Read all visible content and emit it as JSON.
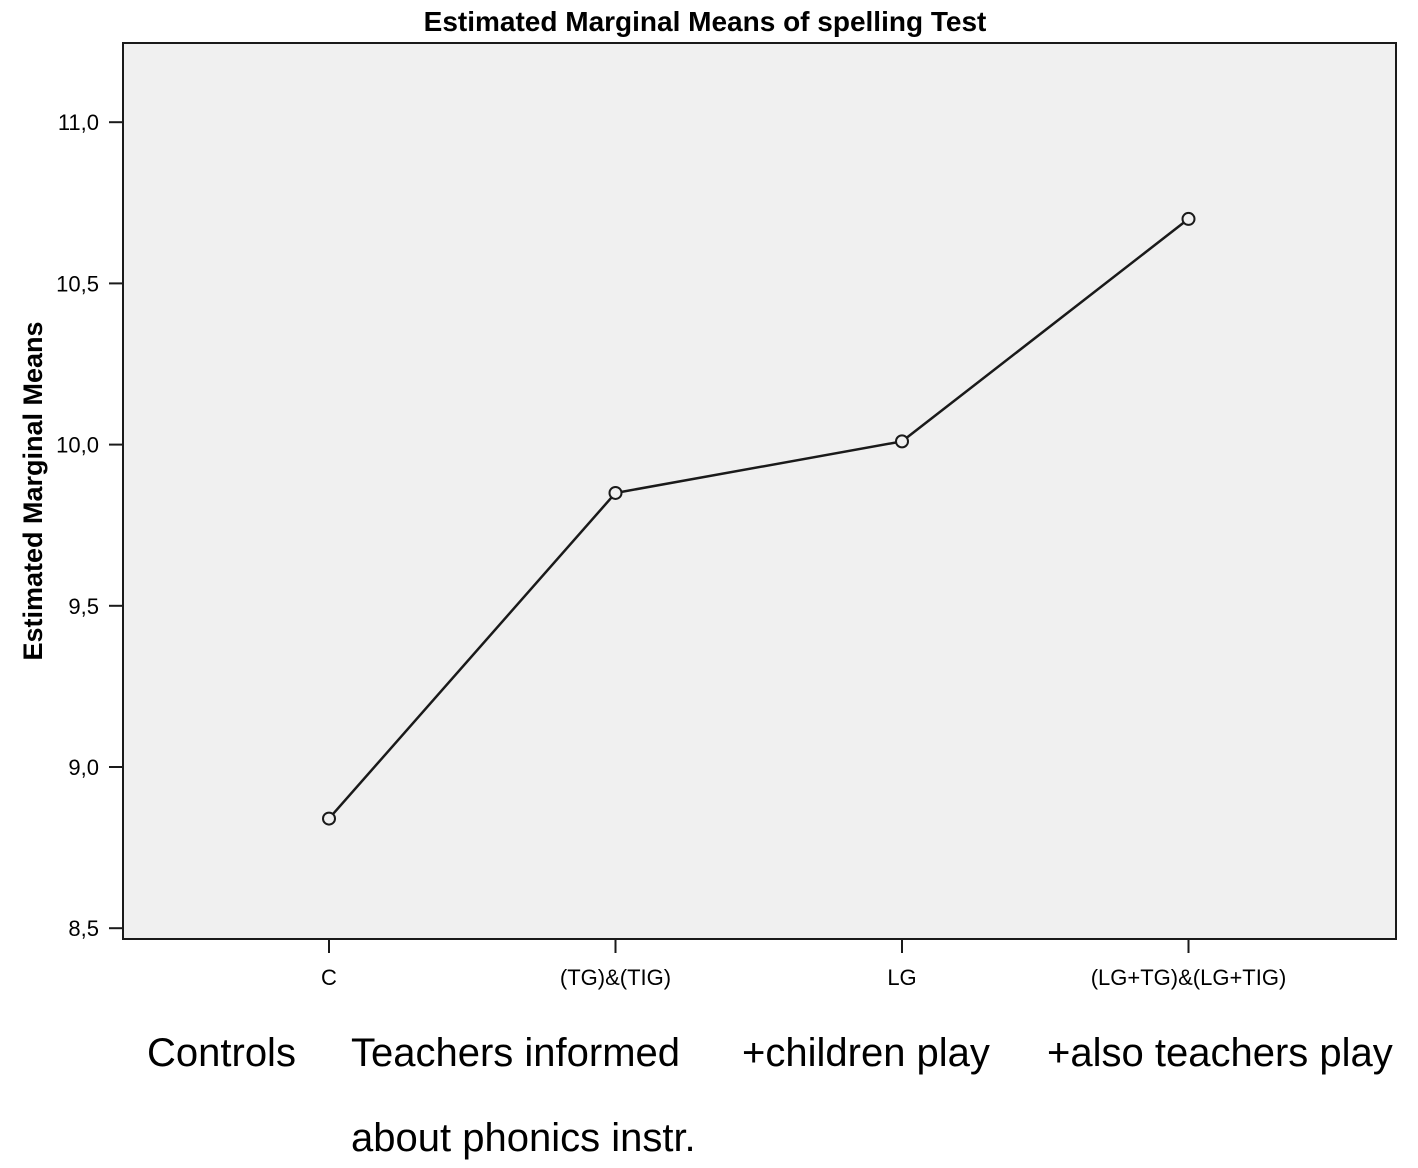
{
  "chart_data": {
    "type": "line",
    "title": "Estimated Marginal Means of spelling Test",
    "ylabel": "Estimated Marginal Means",
    "xlabel": "",
    "categories": [
      "C",
      "(TG)&(TIG)",
      "LG",
      "(LG+TG)&(LG+TIG)"
    ],
    "series": [
      {
        "values": [
          8.84,
          9.85,
          10.01,
          10.7
        ]
      }
    ],
    "ylim": [
      8.36,
      11.14
    ],
    "yticks": [
      8.5,
      9.0,
      9.5,
      10.0,
      10.5,
      11.0
    ],
    "ytick_labels": [
      "8,5",
      "9,0",
      "9,5",
      "10,0",
      "10,5",
      "11,0"
    ],
    "grid": false,
    "marker": "open-circle",
    "line_color": "#1a1a1a",
    "plot_background": "#f0f0f0",
    "category_annotations": [
      [
        "Controls"
      ],
      [
        "Teachers informed",
        "about phonics instr."
      ],
      [
        "+children play"
      ],
      [
        "+also teachers play"
      ]
    ]
  }
}
